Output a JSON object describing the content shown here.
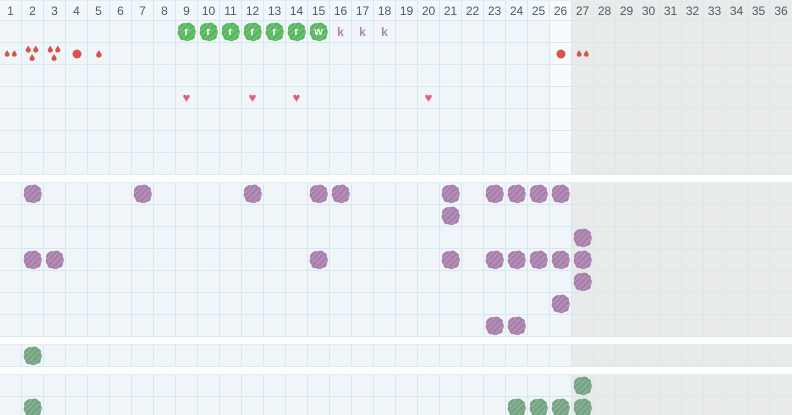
{
  "app": {
    "view": "cycle-tracking-chart"
  },
  "palette": {
    "cell_bg": "#eff5f8",
    "header_bg": "#f1f7fa",
    "gray_region_bg": "#e9eaea",
    "grid_line": "#d9e7ef",
    "gap_bg": "#fdfefe",
    "day_number_text": "#4e5a63",
    "green_blob": "#57b75c",
    "purple_blob": "#a87fab",
    "sage_blob": "#74a482",
    "blood_red": "#d9534d",
    "heart_pink": "#df5f7d",
    "k_letter": "#b283b2",
    "blob_letter_text": "#ffffff"
  },
  "chart": {
    "total_days": 36,
    "gray_from_day": 27,
    "highlight_day": 26,
    "days": [
      "1",
      "2",
      "3",
      "4",
      "5",
      "6",
      "7",
      "8",
      "9",
      "10",
      "11",
      "12",
      "13",
      "14",
      "15",
      "16",
      "17",
      "18",
      "19",
      "20",
      "21",
      "22",
      "23",
      "24",
      "25",
      "26",
      "27",
      "28",
      "29",
      "30",
      "31",
      "32",
      "33",
      "34",
      "35",
      "36"
    ],
    "sections": [
      {
        "name": "calendar-top",
        "day_header": true,
        "rows": [
          {
            "name": "letters",
            "marks": [
              {
                "day": 9,
                "icon": "green-blob",
                "letter": "r"
              },
              {
                "day": 10,
                "icon": "green-blob",
                "letter": "r"
              },
              {
                "day": 11,
                "icon": "green-blob",
                "letter": "r"
              },
              {
                "day": 12,
                "icon": "green-blob",
                "letter": "r"
              },
              {
                "day": 13,
                "icon": "green-blob",
                "letter": "r"
              },
              {
                "day": 14,
                "icon": "green-blob",
                "letter": "r"
              },
              {
                "day": 15,
                "icon": "green-blob",
                "letter": "w"
              },
              {
                "day": 16,
                "icon": "letter",
                "letter": "k"
              },
              {
                "day": 17,
                "icon": "letter",
                "letter": "k"
              },
              {
                "day": 18,
                "icon": "letter",
                "letter": "k"
              }
            ]
          },
          {
            "name": "bleeding",
            "marks": [
              {
                "day": 1,
                "icon": "drops-2"
              },
              {
                "day": 2,
                "icon": "drops-3"
              },
              {
                "day": 3,
                "icon": "drops-3"
              },
              {
                "day": 4,
                "icon": "dot"
              },
              {
                "day": 5,
                "icon": "drop-1"
              },
              {
                "day": 26,
                "icon": "dot"
              },
              {
                "day": 27,
                "icon": "drops-2"
              }
            ]
          },
          {
            "name": "empty-1",
            "marks": []
          },
          {
            "name": "hearts",
            "marks": [
              {
                "day": 9,
                "icon": "heart"
              },
              {
                "day": 12,
                "icon": "heart"
              },
              {
                "day": 14,
                "icon": "heart"
              },
              {
                "day": 20,
                "icon": "heart"
              }
            ]
          },
          {
            "name": "empty-2",
            "marks": []
          },
          {
            "name": "empty-3",
            "marks": []
          },
          {
            "name": "empty-4",
            "marks": []
          }
        ]
      },
      {
        "name": "symptoms-purple",
        "day_header": false,
        "rows": [
          {
            "name": "purple-1",
            "marks": [
              {
                "day": 2,
                "icon": "purple-blob"
              },
              {
                "day": 7,
                "icon": "purple-blob"
              },
              {
                "day": 12,
                "icon": "purple-blob"
              },
              {
                "day": 15,
                "icon": "purple-blob"
              },
              {
                "day": 16,
                "icon": "purple-blob"
              },
              {
                "day": 21,
                "icon": "purple-blob"
              },
              {
                "day": 23,
                "icon": "purple-blob"
              },
              {
                "day": 24,
                "icon": "purple-blob"
              },
              {
                "day": 25,
                "icon": "purple-blob"
              },
              {
                "day": 26,
                "icon": "purple-blob"
              }
            ]
          },
          {
            "name": "purple-2",
            "marks": [
              {
                "day": 21,
                "icon": "purple-blob"
              }
            ]
          },
          {
            "name": "purple-3",
            "marks": [
              {
                "day": 27,
                "icon": "purple-blob"
              }
            ]
          },
          {
            "name": "purple-4",
            "marks": [
              {
                "day": 2,
                "icon": "purple-blob"
              },
              {
                "day": 3,
                "icon": "purple-blob"
              },
              {
                "day": 15,
                "icon": "purple-blob"
              },
              {
                "day": 21,
                "icon": "purple-blob"
              },
              {
                "day": 23,
                "icon": "purple-blob"
              },
              {
                "day": 24,
                "icon": "purple-blob"
              },
              {
                "day": 25,
                "icon": "purple-blob"
              },
              {
                "day": 26,
                "icon": "purple-blob"
              },
              {
                "day": 27,
                "icon": "purple-blob"
              }
            ]
          },
          {
            "name": "purple-5",
            "marks": [
              {
                "day": 27,
                "icon": "purple-blob"
              }
            ]
          },
          {
            "name": "purple-6",
            "marks": [
              {
                "day": 26,
                "icon": "purple-blob"
              }
            ]
          },
          {
            "name": "purple-7",
            "marks": [
              {
                "day": 23,
                "icon": "purple-blob"
              },
              {
                "day": 24,
                "icon": "purple-blob"
              }
            ]
          }
        ]
      },
      {
        "name": "green-single",
        "day_header": false,
        "rows": [
          {
            "name": "green-1",
            "marks": [
              {
                "day": 2,
                "icon": "sage-blob"
              }
            ]
          }
        ]
      },
      {
        "name": "green-double",
        "day_header": false,
        "rows": [
          {
            "name": "green-2",
            "marks": [
              {
                "day": 27,
                "icon": "sage-blob"
              }
            ]
          },
          {
            "name": "green-3",
            "marks": [
              {
                "day": 2,
                "icon": "sage-blob"
              },
              {
                "day": 24,
                "icon": "sage-blob"
              },
              {
                "day": 25,
                "icon": "sage-blob"
              },
              {
                "day": 26,
                "icon": "sage-blob"
              },
              {
                "day": 27,
                "icon": "sage-blob"
              }
            ]
          }
        ]
      }
    ]
  }
}
